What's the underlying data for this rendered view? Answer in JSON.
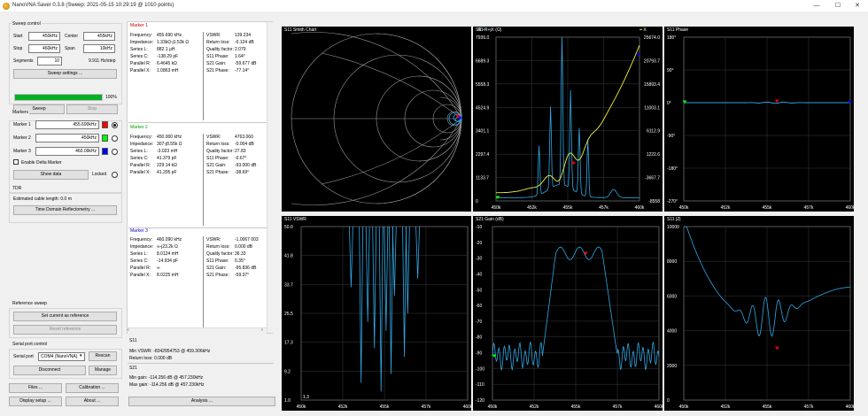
{
  "window": {
    "title": "NanoVNA Saver 0.3.8 (Sweep: 2021-05-15 10:29:19 @ 1010 points)",
    "minimize": "—",
    "maximize": "☐",
    "close": "✕"
  },
  "sweep_control": {
    "title": "Sweep control",
    "start_label": "Start",
    "start_value": "450kHz",
    "center_label": "Center",
    "center_value": "455kHz",
    "stop_label": "Stop",
    "stop_value": "460kHz",
    "span_label": "Span",
    "span_value": "10kHz",
    "segments_label": "Segments",
    "segments_value": "10",
    "step_text": "9.911 Hz/step",
    "settings_button": "Sweep settings ...",
    "progress": 100,
    "progress_text": "100%",
    "sweep_button": "Sweep",
    "stop_button": "Stop"
  },
  "markers": {
    "title": "Markers",
    "items": [
      {
        "label": "Marker 1",
        "value": "455.690kHz",
        "color": "#ff0000"
      },
      {
        "label": "Marker 2",
        "value": "450kHz",
        "color": "#00ff00"
      },
      {
        "label": "Marker 3",
        "value": "460.09kHz",
        "color": "#0000ff"
      }
    ],
    "delta_label": "Enable Delta Marker",
    "show_data_button": "Show data",
    "locked_label": "Locked"
  },
  "tdr": {
    "title": "TDR",
    "cable_text": "Estimated cable length:  0.0 m",
    "button": "Time Domain Reflectometry ..."
  },
  "reference": {
    "title": "Reference sweep",
    "set_button": "Set current as reference",
    "reset_button": "Reset reference"
  },
  "serial": {
    "title": "Serial port control",
    "port_label": "Serial port",
    "port_value": "COM4 (NanoVNA)",
    "rescan_button": "Rescan",
    "disconnect_button": "Disconnect",
    "manage_button": "Manage"
  },
  "bottom_buttons": {
    "files": "Files ...",
    "calibration": "Calibration ...",
    "display": "Display setup ...",
    "about": "About ...",
    "analysis": "Analysis ..."
  },
  "marker_details": [
    {
      "title": "Marker 1",
      "color": "#ff0000",
      "left": [
        [
          "Frequency:",
          "455.690 kHz"
        ],
        [
          "Impedance:",
          "1.33kΩ-j1.53k Ω"
        ],
        [
          "Series L:",
          "882.1 μH"
        ],
        [
          "Series C:",
          "-138.29 pF"
        ],
        [
          "Parallel R:",
          "6.4645 kΩ"
        ],
        [
          "Parallel X:",
          "1.0863 mH"
        ]
      ],
      "right": [
        [
          "VSWR:",
          "139.234"
        ],
        [
          "Return loss:",
          "-0.124 dB"
        ],
        [
          "Quality factor:",
          "2.079"
        ],
        [
          "S11 Phase:",
          "1.64°"
        ],
        [
          "S21 Gain:",
          "-59.677 dB"
        ],
        [
          "S21 Phase:",
          "-77.14°"
        ]
      ]
    },
    {
      "title": "Marker 2",
      "color": "#00c000",
      "left": [
        [
          "Frequency:",
          "450.000 kHz"
        ],
        [
          "Impedance:",
          "307-j8.55k Ω"
        ],
        [
          "Series L:",
          "-3.023 mH"
        ],
        [
          "Series C:",
          "41.379 pF"
        ],
        [
          "Parallel R:",
          "229.14 kΩ"
        ],
        [
          "Parallel X:",
          "41.205 pF"
        ]
      ],
      "right": [
        [
          "VSWR:",
          "4763.060"
        ],
        [
          "Return loss:",
          "-0.004 dB"
        ],
        [
          "Quality factor:",
          "27.83"
        ],
        [
          "S11 Phase:",
          "-0.67°"
        ],
        [
          "S21 Gain:",
          "-93.000 dB"
        ],
        [
          "S21 Phase:",
          "-38.69°"
        ]
      ]
    },
    {
      "title": "Marker 3",
      "color": "#0000ff",
      "left": [
        [
          "Frequency:",
          "460.090 kHz"
        ],
        [
          "Impedance:",
          "∞-j23.2k Ω"
        ],
        [
          "Series L:",
          "8.0124 mH"
        ],
        [
          "Series C:",
          "-14.934 pF"
        ],
        [
          "Parallel R:",
          "∞"
        ],
        [
          "Parallel X:",
          "8.0225 mH"
        ]
      ],
      "right": [
        [
          "VSWR:",
          "-1.0067 003"
        ],
        [
          "Return loss:",
          "0.000 dB"
        ],
        [
          "Quality factor:",
          "36.33"
        ],
        [
          "S11 Phase:",
          "0.35°"
        ],
        [
          "S21 Gain:",
          "-95.836 dB"
        ],
        [
          "S21 Phase:",
          "-59.37°"
        ]
      ]
    }
  ],
  "summary": {
    "s11_title": "S11",
    "min_vswr": "Min VSWR:    -8342954753 @ 459.306kHz",
    "return_loss": "Return loss:   0.000 dB",
    "s21_title": "S21",
    "min_gain": "Min gain:   -114.256 dB @ 457.230kHz",
    "max_gain": "Max gain:   -114.256 dB @ 457.230kHz"
  },
  "charts": {
    "smith": {
      "title": "S11 Smith Chart"
    },
    "rx": {
      "title": "S11 R+jX (Ω)",
      "left_legend": "R",
      "right_legend": "X",
      "left_ticks": [
        "7936.0",
        "6689.3",
        "5558.3",
        "4524.9",
        "3401.1",
        "2297.4",
        "1133.7",
        "0"
      ],
      "right_ticks": [
        "25674.0",
        "20793.7",
        "15893.4",
        "11003.1",
        "6112.9",
        "1222.6",
        "-3667.7",
        "-8558"
      ],
      "x_ticks": [
        "450k",
        "452k",
        "455k",
        "457k",
        "460k"
      ]
    },
    "phase": {
      "title": "S11 Phase",
      "y_ticks": [
        "180°",
        "90°",
        "0°",
        "-90°",
        "-180°",
        "-270°"
      ],
      "x_ticks": [
        "450k",
        "452k",
        "455k",
        "457k",
        "460k"
      ]
    },
    "vswr": {
      "title": "S11 VSWR",
      "y_ticks": [
        "50.0",
        "41.8",
        "33.7",
        "25.5",
        "17.3",
        "9.2",
        "1.0"
      ],
      "x_ticks": [
        "450k",
        "452k",
        "455k",
        "457k",
        "460k"
      ],
      "corner_label": "1.3"
    },
    "gain": {
      "title": "S21 Gain (dB)",
      "y_ticks": [
        "-10",
        "-20",
        "-30",
        "-40",
        "-50",
        "-60",
        "-70",
        "-80",
        "-90",
        "-100",
        "-110",
        "-120"
      ],
      "x_ticks": [
        "450k",
        "452k",
        "455k",
        "457k",
        "460k"
      ]
    },
    "z": {
      "title": "S11 |Z|",
      "y_ticks": [
        "10000",
        "8000",
        "6000",
        "4000",
        "2000",
        "0"
      ],
      "x_ticks": [
        "450k",
        "452k",
        "455k",
        "457k",
        "460k"
      ]
    }
  },
  "colors": {
    "trace": "#2fa9e6",
    "reactance": "#f2f23a",
    "grid": "#3a3a3a",
    "marker1": "#ff0000",
    "marker2": "#00ff00",
    "marker3": "#0000ff"
  }
}
